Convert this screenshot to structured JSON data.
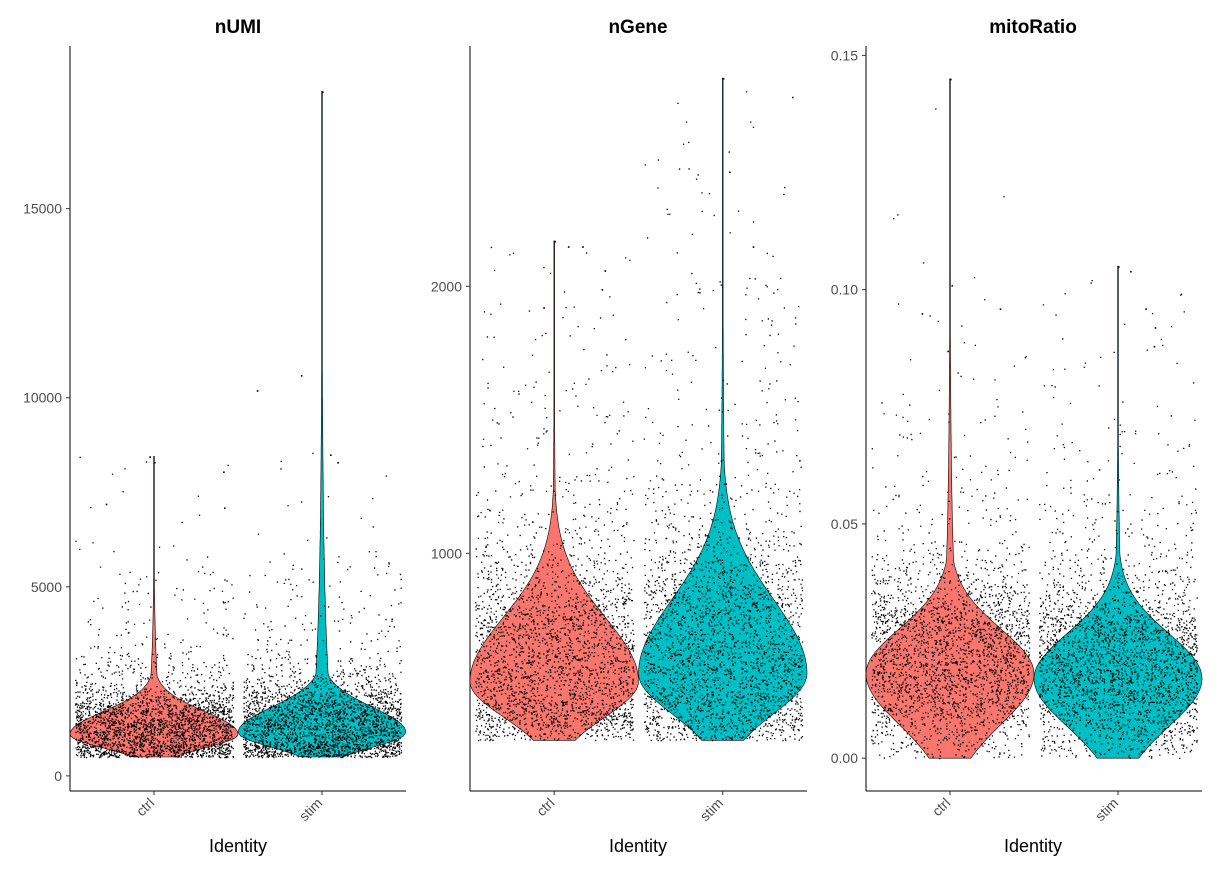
{
  "chart_data": [
    {
      "type": "violin",
      "title": "nUMI",
      "xlabel": "Identity",
      "ylabel": "",
      "ylim": [
        -400,
        19300
      ],
      "yticks": [
        0,
        5000,
        10000,
        15000
      ],
      "ytick_labels": [
        "0",
        "5000",
        "10000",
        "15000"
      ],
      "categories": [
        "ctrl",
        "stim"
      ],
      "colors": [
        "#F8766D",
        "#00BFC4"
      ],
      "series": [
        {
          "category": "ctrl",
          "min": 500,
          "max": 8450,
          "mode": 1100,
          "q1": 850,
          "median": 1150,
          "q3": 1600,
          "point_max": 8450,
          "outliers": [
            8300,
            8450,
            8050,
            7200,
            7100
          ]
        },
        {
          "category": "stim",
          "min": 500,
          "max": 18100,
          "mode": 1150,
          "q1": 850,
          "median": 1200,
          "q3": 1700,
          "point_max": 18100,
          "outliers": [
            18100,
            10600,
            10200,
            8500,
            8300
          ]
        }
      ]
    },
    {
      "type": "violin",
      "title": "nGene",
      "xlabel": "Identity",
      "ylabel": "",
      "ylim": [
        110,
        2900
      ],
      "yticks": [
        1000,
        2000
      ],
      "ytick_labels": [
        "1000",
        "2000"
      ],
      "categories": [
        "ctrl",
        "stim"
      ],
      "colors": [
        "#F8766D",
        "#00BFC4"
      ],
      "series": [
        {
          "category": "ctrl",
          "min": 300,
          "max": 2170,
          "mode": 520,
          "q1": 450,
          "median": 560,
          "q3": 720,
          "point_max": 2170,
          "outliers": [
            2170,
            2150,
            2150,
            2060,
            1990
          ]
        },
        {
          "category": "stim",
          "min": 300,
          "max": 2780,
          "mode": 550,
          "q1": 470,
          "median": 590,
          "q3": 780,
          "point_max": 2780,
          "outliers": [
            2780,
            2710,
            2430,
            2150,
            1980
          ]
        }
      ]
    },
    {
      "type": "violin",
      "title": "mitoRatio",
      "xlabel": "Identity",
      "ylabel": "",
      "ylim": [
        -0.007,
        0.152
      ],
      "yticks": [
        0.0,
        0.05,
        0.1,
        0.15
      ],
      "ytick_labels": [
        "0.00",
        "0.05",
        "0.10",
        "0.15"
      ],
      "categories": [
        "ctrl",
        "stim"
      ],
      "colors": [
        "#F8766D",
        "#00BFC4"
      ],
      "series": [
        {
          "category": "ctrl",
          "min": 0.0,
          "max": 0.145,
          "mode": 0.018,
          "q1": 0.013,
          "median": 0.019,
          "q3": 0.026,
          "point_max": 0.145,
          "outliers": [
            0.145,
            0.101,
            0.096,
            0.095,
            0.087
          ]
        },
        {
          "category": "stim",
          "min": 0.0,
          "max": 0.105,
          "mode": 0.017,
          "q1": 0.012,
          "median": 0.018,
          "q3": 0.025,
          "point_max": 0.105,
          "outliers": [
            0.105,
            0.104,
            0.096,
            0.092,
            0.088
          ]
        }
      ]
    }
  ]
}
